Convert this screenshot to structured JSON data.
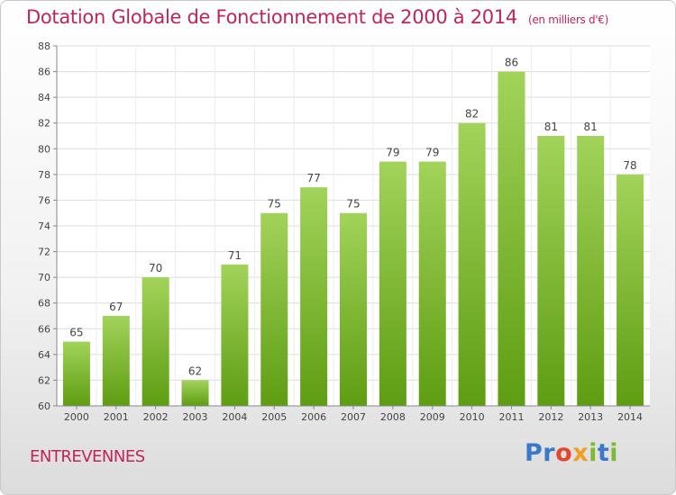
{
  "header": {
    "title": "Dotation Globale de Fonctionnement de 2000 à 2014",
    "unit": "(en milliers d'€)"
  },
  "footer": {
    "commune": "ENTREVENNES",
    "logo_letters": [
      "P",
      "r",
      "o",
      "x",
      "i",
      "t",
      "i"
    ],
    "logo_colors": [
      "#3a78c9",
      "#3a78c9",
      "#e2462b",
      "#f0a020",
      "#7cbb2f",
      "#3a78c9",
      "#7cbb2f"
    ]
  },
  "colors": {
    "accent": "#c0245c",
    "bar_top": "#a2d35a",
    "bar_bottom": "#5e9d12",
    "grid": "#dcdcdc"
  },
  "chart_data": {
    "type": "bar",
    "categories": [
      "2000",
      "2001",
      "2002",
      "2003",
      "2004",
      "2005",
      "2006",
      "2007",
      "2008",
      "2009",
      "2010",
      "2011",
      "2012",
      "2013",
      "2014"
    ],
    "values": [
      65,
      67,
      70,
      62,
      71,
      75,
      77,
      75,
      79,
      79,
      82,
      86,
      81,
      81,
      78
    ],
    "ylim": [
      60,
      88
    ],
    "yticks": [
      60,
      62,
      64,
      66,
      68,
      70,
      72,
      74,
      76,
      78,
      80,
      82,
      84,
      86,
      88
    ],
    "grid": true,
    "data_labels": true
  }
}
